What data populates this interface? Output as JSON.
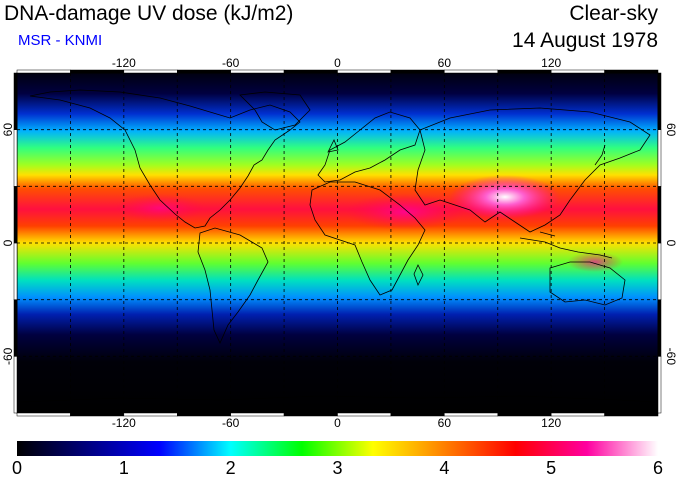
{
  "header": {
    "title": "DNA-damage UV dose (kJ/m2)",
    "subtitle": "MSR - KNMI",
    "condition": "Clear-sky",
    "date": "14 August 1978"
  },
  "map": {
    "lon_ticks": [
      "-120",
      "-60",
      "0",
      "60",
      "120"
    ],
    "lat_ticks": [
      "60",
      "0",
      "-60"
    ],
    "lon_range": [
      -180,
      180
    ],
    "lat_range": [
      -90,
      90
    ],
    "grid": "dashed every 30 degrees",
    "projection": "equirectangular"
  },
  "colorbar": {
    "ticks": [
      "0",
      "1",
      "2",
      "3",
      "4",
      "5",
      "6"
    ],
    "range": [
      0,
      6
    ],
    "colors": [
      "#000000",
      "#000080",
      "#0000ff",
      "#00ffff",
      "#00ff00",
      "#ffff00",
      "#ff8000",
      "#ff0000",
      "#ff00a0",
      "#ffffff"
    ]
  }
}
